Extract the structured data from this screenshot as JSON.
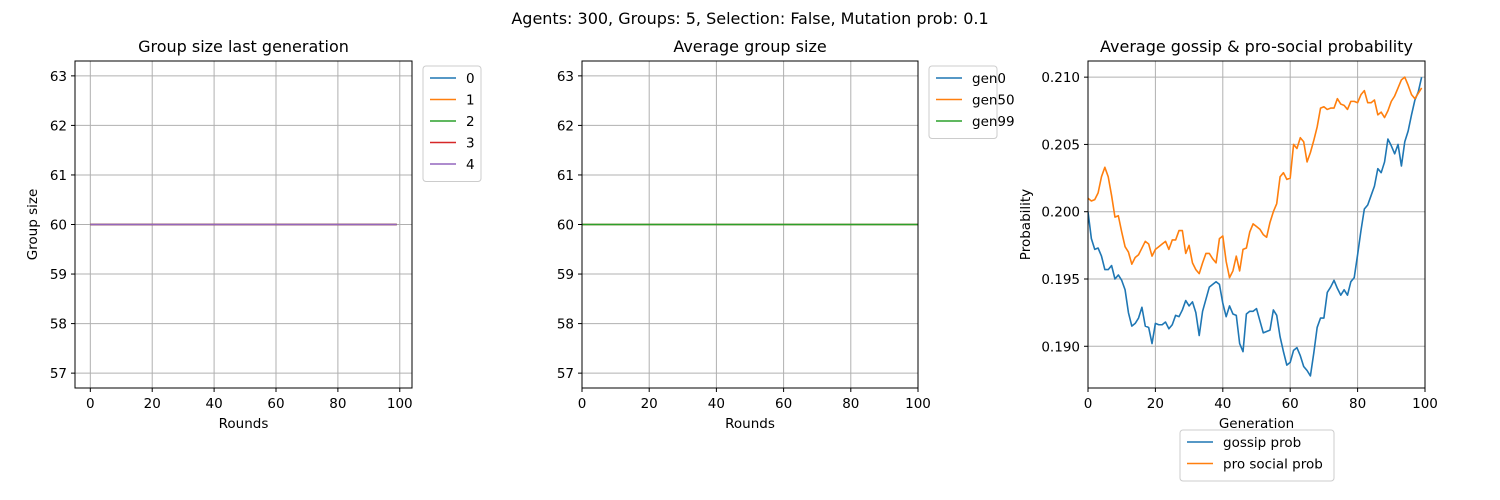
{
  "figure": {
    "suptitle": "Agents: 300, Groups: 5, Selection: False, Mutation prob: 0.1"
  },
  "chart_data": [
    {
      "type": "line",
      "title": "Group size last generation",
      "xlabel": "Rounds",
      "ylabel": "Group size",
      "xlim": [
        -4.95,
        103.95
      ],
      "ylim": [
        56.7,
        63.3
      ],
      "xticks": [
        0,
        20,
        40,
        60,
        80,
        100
      ],
      "yticks": [
        57,
        58,
        59,
        60,
        61,
        62,
        63
      ],
      "grid": true,
      "legend": "outside-upper-right",
      "series": [
        {
          "name": "0",
          "color": "#1f77b4",
          "x": [
            0,
            99
          ],
          "y": [
            60,
            60
          ]
        },
        {
          "name": "1",
          "color": "#ff7f0e",
          "x": [
            0,
            99
          ],
          "y": [
            60,
            60
          ]
        },
        {
          "name": "2",
          "color": "#2ca02c",
          "x": [
            0,
            99
          ],
          "y": [
            60,
            60
          ]
        },
        {
          "name": "3",
          "color": "#d62728",
          "x": [
            0,
            99
          ],
          "y": [
            60,
            60
          ]
        },
        {
          "name": "4",
          "color": "#9467bd",
          "x": [
            0,
            99
          ],
          "y": [
            60,
            60
          ]
        }
      ]
    },
    {
      "type": "line",
      "title": "Average group size",
      "xlabel": "Rounds",
      "ylabel": "",
      "xlim": [
        0,
        100
      ],
      "ylim": [
        56.7,
        63.3
      ],
      "xticks": [
        0,
        20,
        40,
        60,
        80,
        100
      ],
      "yticks": [
        57,
        58,
        59,
        60,
        61,
        62,
        63
      ],
      "grid": true,
      "legend": "outside-upper-right",
      "series": [
        {
          "name": "gen0",
          "color": "#1f77b4",
          "x": [
            0,
            100
          ],
          "y": [
            60,
            60
          ]
        },
        {
          "name": "gen50",
          "color": "#ff7f0e",
          "x": [
            0,
            100
          ],
          "y": [
            60,
            60
          ]
        },
        {
          "name": "gen99",
          "color": "#2ca02c",
          "x": [
            0,
            100
          ],
          "y": [
            60,
            60
          ]
        }
      ]
    },
    {
      "type": "line",
      "title": "Average gossip & pro-social probability",
      "xlabel": "Generation",
      "ylabel": "Probability",
      "xlim": [
        0,
        100
      ],
      "ylim": [
        0.1869,
        0.2112
      ],
      "xticks": [
        0,
        20,
        40,
        60,
        80,
        100
      ],
      "yticks": [
        0.19,
        0.195,
        0.2,
        0.205,
        0.21
      ],
      "ytick_labels": [
        "0.190",
        "0.195",
        "0.200",
        "0.205",
        "0.210"
      ],
      "grid": true,
      "legend": "below",
      "series": [
        {
          "name": "gossip prob",
          "color": "#1f77b4",
          "y": [
            0.2,
            0.198,
            0.1972,
            0.1973,
            0.1967,
            0.1957,
            0.1957,
            0.196,
            0.195,
            0.1953,
            0.1949,
            0.1942,
            0.1925,
            0.1915,
            0.1917,
            0.1921,
            0.1929,
            0.1915,
            0.1914,
            0.1902,
            0.1917,
            0.1916,
            0.1916,
            0.1918,
            0.1913,
            0.1916,
            0.1923,
            0.1922,
            0.1927,
            0.1934,
            0.193,
            0.1933,
            0.1925,
            0.1908,
            0.1926,
            0.1935,
            0.1944,
            0.1946,
            0.1948,
            0.1946,
            0.1932,
            0.1922,
            0.193,
            0.1924,
            0.1923,
            0.1902,
            0.1896,
            0.1924,
            0.1926,
            0.1926,
            0.1928,
            0.1919,
            0.191,
            0.1911,
            0.1912,
            0.1927,
            0.1923,
            0.1907,
            0.1896,
            0.1886,
            0.1888,
            0.1897,
            0.1899,
            0.1893,
            0.1885,
            0.1882,
            0.1878,
            0.1895,
            0.1914,
            0.1921,
            0.1921,
            0.194,
            0.1944,
            0.1949,
            0.1943,
            0.1938,
            0.1942,
            0.1938,
            0.1948,
            0.1951,
            0.1968,
            0.1986,
            0.2002,
            0.2005,
            0.2012,
            0.2019,
            0.2032,
            0.2029,
            0.2037,
            0.2054,
            0.2049,
            0.2043,
            0.205,
            0.2034,
            0.2052,
            0.206,
            0.2072,
            0.2083,
            0.2089,
            0.21
          ]
        },
        {
          "name": "pro social prob",
          "color": "#ff7f0e",
          "y": [
            0.201,
            0.2008,
            0.2009,
            0.2014,
            0.2026,
            0.2033,
            0.2026,
            0.2012,
            0.1996,
            0.1997,
            0.1985,
            0.1974,
            0.197,
            0.1961,
            0.1966,
            0.1968,
            0.1973,
            0.1978,
            0.1976,
            0.1967,
            0.1972,
            0.1974,
            0.1976,
            0.1978,
            0.1972,
            0.1979,
            0.1979,
            0.1986,
            0.1986,
            0.1969,
            0.1975,
            0.1962,
            0.1957,
            0.1954,
            0.1962,
            0.1969,
            0.1969,
            0.1965,
            0.1962,
            0.198,
            0.1982,
            0.1963,
            0.1951,
            0.1956,
            0.1967,
            0.1956,
            0.1972,
            0.1973,
            0.1985,
            0.1991,
            0.1989,
            0.1987,
            0.1983,
            0.1981,
            0.1992,
            0.2,
            0.2006,
            0.2026,
            0.2029,
            0.2024,
            0.2025,
            0.205,
            0.2047,
            0.2055,
            0.2052,
            0.2037,
            0.2044,
            0.2053,
            0.2063,
            0.2077,
            0.2078,
            0.2076,
            0.2077,
            0.2077,
            0.2084,
            0.208,
            0.2079,
            0.2076,
            0.2082,
            0.2082,
            0.2081,
            0.2087,
            0.209,
            0.2081,
            0.2081,
            0.2083,
            0.2072,
            0.2074,
            0.207,
            0.2075,
            0.2082,
            0.2086,
            0.2092,
            0.2098,
            0.21,
            0.2094,
            0.2087,
            0.2084,
            0.2088,
            0.2092
          ]
        }
      ]
    }
  ]
}
